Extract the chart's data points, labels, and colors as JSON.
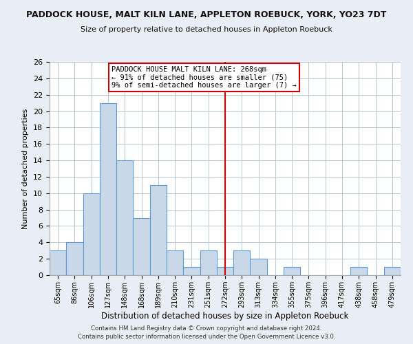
{
  "title": "PADDOCK HOUSE, MALT KILN LANE, APPLETON ROEBUCK, YORK, YO23 7DT",
  "subtitle": "Size of property relative to detached houses in Appleton Roebuck",
  "xlabel": "Distribution of detached houses by size in Appleton Roebuck",
  "ylabel": "Number of detached properties",
  "bin_labels": [
    "65sqm",
    "86sqm",
    "106sqm",
    "127sqm",
    "148sqm",
    "168sqm",
    "189sqm",
    "210sqm",
    "231sqm",
    "251sqm",
    "272sqm",
    "293sqm",
    "313sqm",
    "334sqm",
    "355sqm",
    "375sqm",
    "396sqm",
    "417sqm",
    "438sqm",
    "458sqm",
    "479sqm"
  ],
  "bar_heights": [
    3,
    4,
    10,
    21,
    14,
    7,
    11,
    3,
    1,
    3,
    1,
    3,
    2,
    0,
    1,
    0,
    0,
    0,
    1,
    0,
    1
  ],
  "bar_color": "#c8d8e8",
  "bar_edge_color": "#5b9bd5",
  "ylim": [
    0,
    26
  ],
  "yticks": [
    0,
    2,
    4,
    6,
    8,
    10,
    12,
    14,
    16,
    18,
    20,
    22,
    24,
    26
  ],
  "vline_x_index": 10,
  "vline_color": "#cc0000",
  "annotation_title": "PADDOCK HOUSE MALT KILN LANE: 268sqm",
  "annotation_line1": "← 91% of detached houses are smaller (75)",
  "annotation_line2": "9% of semi-detached houses are larger (7) →",
  "annotation_box_color": "white",
  "annotation_box_edge": "#cc0000",
  "footer1": "Contains HM Land Registry data © Crown copyright and database right 2024.",
  "footer2": "Contains public sector information licensed under the Open Government Licence v3.0.",
  "background_color": "#e8eef4",
  "plot_background": "white",
  "grid_color": "#b8c8d8"
}
